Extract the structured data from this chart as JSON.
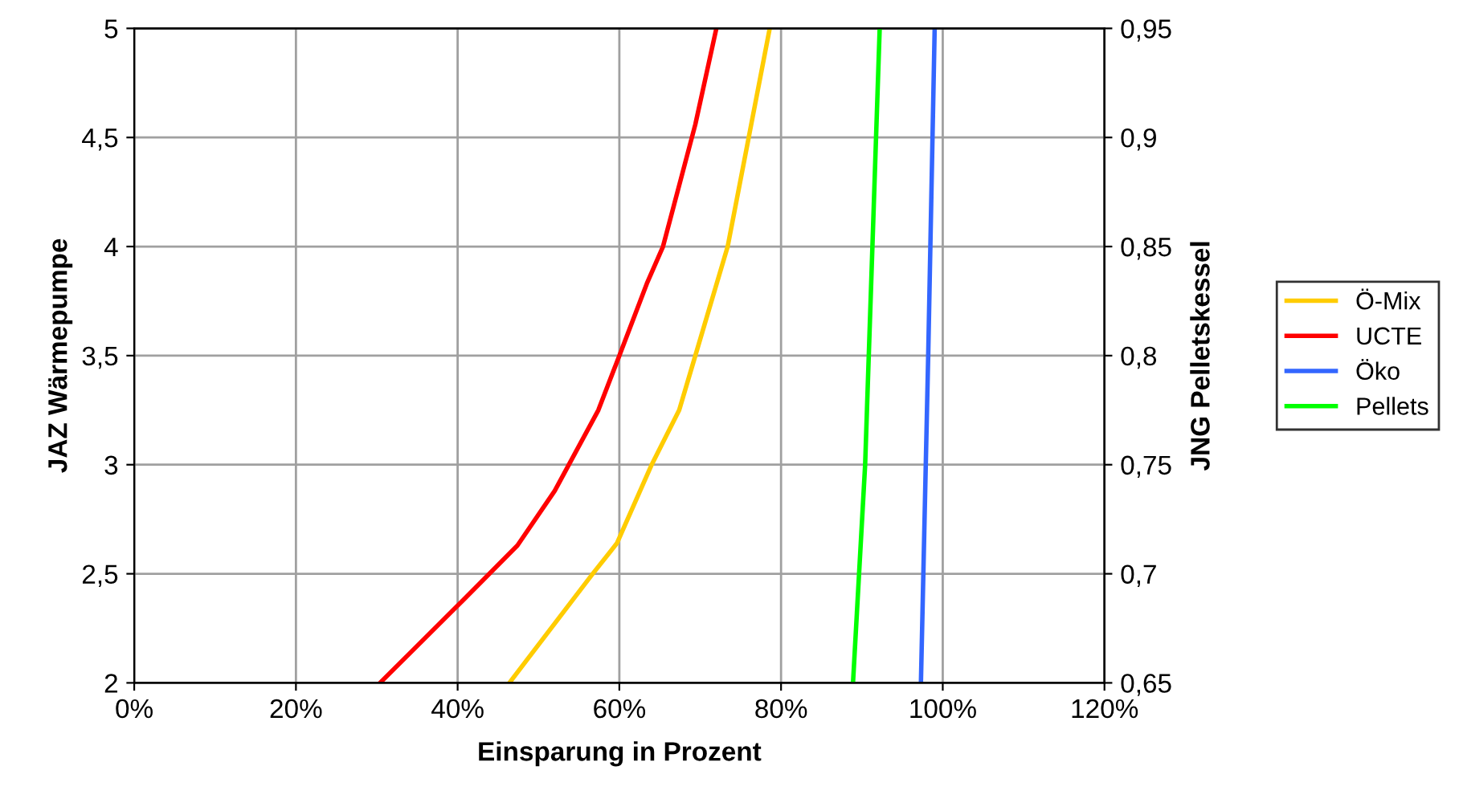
{
  "chart_data": {
    "type": "line",
    "xlabel": "Einsparung in Prozent",
    "ylabel": "JAZ Wärmepumpe",
    "y2label": "JNG Pelletskessel",
    "xlim": [
      0,
      120
    ],
    "xticks": [
      {
        "value": 0,
        "label": "0%"
      },
      {
        "value": 20,
        "label": "20%"
      },
      {
        "value": 40,
        "label": "40%"
      },
      {
        "value": 60,
        "label": "60%"
      },
      {
        "value": 80,
        "label": "80%"
      },
      {
        "value": 100,
        "label": "100%"
      },
      {
        "value": 120,
        "label": "120%"
      }
    ],
    "ylim": [
      2,
      5
    ],
    "yticks": [
      2,
      {
        "value": 2.5,
        "label": "2,5"
      },
      3,
      {
        "value": 3.5,
        "label": "3,5"
      },
      4,
      {
        "value": 4.5,
        "label": "4,5"
      },
      5
    ],
    "y2lim": [
      0.65,
      0.95
    ],
    "y2ticks": [
      {
        "value": 0.65,
        "label": "0,65"
      },
      {
        "value": 0.7,
        "label": "0,7"
      },
      {
        "value": 0.75,
        "label": "0,75"
      },
      {
        "value": 0.8,
        "label": "0,8"
      },
      {
        "value": 0.85,
        "label": "0,85"
      },
      {
        "value": 0.9,
        "label": "0,9"
      },
      {
        "value": 0.95,
        "label": "0,95"
      }
    ],
    "grid": true,
    "legend": "right",
    "marker": "none",
    "line_style": "solid",
    "series": [
      {
        "name": "Ö-Mix",
        "color": "#ffcc00",
        "x": [
          46.4,
          56.7,
          59.7,
          64,
          67.4,
          69.4,
          73.4,
          76,
          78.6
        ],
        "values": [
          2,
          2.5,
          2.64,
          3,
          3.25,
          3.5,
          4,
          4.5,
          5
        ]
      },
      {
        "name": "UCTE",
        "color": "#ff0000",
        "x": [
          30.4,
          40.7,
          47.4,
          52,
          57.4,
          60,
          63.4,
          65.4,
          69.4,
          72
        ],
        "values": [
          2,
          2.38,
          2.63,
          2.88,
          3.25,
          3.5,
          3.83,
          4,
          4.56,
          5
        ]
      },
      {
        "name": "Öko",
        "color": "#3366ff",
        "x": [
          97.3,
          98.2,
          99
        ],
        "values": [
          2,
          3.5,
          5
        ]
      },
      {
        "name": "Pellets",
        "color": "#00ff00",
        "axis": "y2",
        "x": [
          88.9,
          90.4,
          92.2
        ],
        "values": [
          0.65,
          0.75,
          0.95
        ]
      }
    ]
  }
}
